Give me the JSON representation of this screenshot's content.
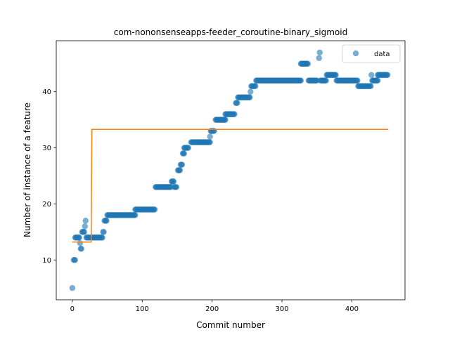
{
  "chart_data": {
    "type": "scatter",
    "title": "com-nononsenseapps-feeder_coroutine-binary_sigmoid",
    "xlabel": "Commit number",
    "ylabel": "Number of instance of a feature",
    "xlim": [
      -23,
      476
    ],
    "ylim": [
      2.9,
      49.1
    ],
    "xticks": [
      0,
      100,
      200,
      300,
      400
    ],
    "yticks": [
      10,
      20,
      30,
      40
    ],
    "legend": {
      "position": "top-right",
      "entries": [
        "data"
      ]
    },
    "colors": {
      "data": "#1f77b4",
      "fit": "#ff7f0e"
    },
    "series": [
      {
        "name": "data",
        "kind": "scatter",
        "segments": [
          [
            0,
            0,
            5
          ],
          [
            2,
            4,
            10
          ],
          [
            4,
            10,
            14
          ],
          [
            11,
            11,
            13
          ],
          [
            12,
            13,
            12
          ],
          [
            14,
            17,
            15
          ],
          [
            18,
            18,
            16
          ],
          [
            19,
            19,
            17
          ],
          [
            20,
            43,
            14
          ],
          [
            44,
            45,
            15
          ],
          [
            46,
            49,
            17
          ],
          [
            50,
            90,
            18
          ],
          [
            90,
            118,
            19
          ],
          [
            119,
            141,
            23
          ],
          [
            142,
            145,
            24
          ],
          [
            146,
            149,
            23
          ],
          [
            151,
            154,
            26
          ],
          [
            155,
            157,
            27
          ],
          [
            158,
            160,
            29
          ],
          [
            160,
            166,
            30
          ],
          [
            170,
            197,
            31
          ],
          [
            197,
            197,
            32
          ],
          [
            198,
            203,
            33
          ],
          [
            205,
            219,
            35
          ],
          [
            219,
            232,
            36
          ],
          [
            234,
            236,
            38
          ],
          [
            237,
            254,
            39
          ],
          [
            255,
            255,
            40
          ],
          [
            256,
            262,
            41
          ],
          [
            263,
            327,
            42
          ],
          [
            327,
            337,
            45
          ],
          [
            338,
            350,
            42
          ],
          [
            353,
            353,
            46
          ],
          [
            354,
            354,
            47
          ],
          [
            355,
            363,
            42
          ],
          [
            364,
            377,
            43
          ],
          [
            378,
            408,
            42
          ],
          [
            409,
            427,
            41
          ],
          [
            428,
            428,
            43
          ],
          [
            429,
            437,
            42
          ],
          [
            437,
            451,
            43
          ]
        ]
      },
      {
        "name": "",
        "kind": "line",
        "points": [
          [
            0,
            13.2
          ],
          [
            27,
            13.2
          ],
          [
            28,
            33.3
          ],
          [
            452,
            33.3
          ]
        ]
      }
    ]
  }
}
